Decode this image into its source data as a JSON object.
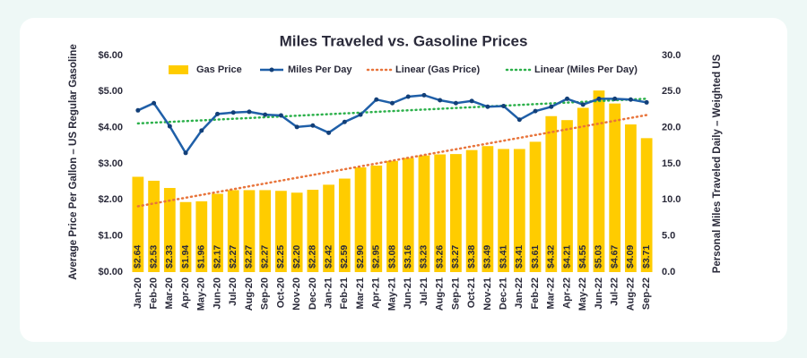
{
  "chart_data": {
    "type": "bar_line",
    "title": "Miles Traveled vs. Gasoline Prices",
    "y_label": "Average Price Per Gallon – US Regular Gasoline",
    "y2_label": "Personal Miles Traveled Daily – Weighted US",
    "categories": [
      "Jan-20",
      "Feb-20",
      "Mar-20",
      "Apr-20",
      "May-20",
      "Jun-20",
      "Jul-20",
      "Aug-20",
      "Sep-20",
      "Oct-20",
      "Nov-20",
      "Dec-20",
      "Jan-21",
      "Feb-21",
      "Mar-21",
      "Apr-21",
      "May-21",
      "Jun-21",
      "Jul-21",
      "Aug-21",
      "Sep-21",
      "Oct-21",
      "Nov-21",
      "Dec-21",
      "Jan-22",
      "Feb-22",
      "Mar-22",
      "Apr-22",
      "May-22",
      "Jun-22",
      "Jul-22",
      "Aug-22",
      "Sep-22"
    ],
    "series": [
      {
        "name": "Gas Price",
        "type": "bar",
        "color": "#ffcc00",
        "values": [
          2.64,
          2.53,
          2.33,
          1.94,
          1.96,
          2.17,
          2.27,
          2.27,
          2.27,
          2.25,
          2.2,
          2.28,
          2.42,
          2.59,
          2.9,
          2.95,
          3.08,
          3.16,
          3.23,
          3.26,
          3.27,
          3.38,
          3.49,
          3.41,
          3.41,
          3.61,
          4.32,
          4.21,
          4.55,
          5.03,
          4.67,
          4.09,
          3.71
        ],
        "value_labels": [
          "$2.64",
          "$2.53",
          "$2.33",
          "$1.94",
          "$1.96",
          "$2.17",
          "$2.27",
          "$2.27",
          "$2.27",
          "$2.25",
          "$2.20",
          "$2.28",
          "$2.42",
          "$2.59",
          "$2.90",
          "$2.95",
          "$3.08",
          "$3.16",
          "$3.23",
          "$3.26",
          "$3.27",
          "$3.38",
          "$3.49",
          "$3.41",
          "$3.41",
          "$3.61",
          "$4.32",
          "$4.21",
          "$4.55",
          "$5.03",
          "$4.67",
          "$4.09",
          "$3.71"
        ]
      },
      {
        "name": "Miles Per Day",
        "type": "line",
        "axis": "y2",
        "color": "#1f5fa8",
        "values": [
          22.4,
          23.4,
          20.2,
          16.5,
          19.6,
          21.9,
          22.1,
          22.2,
          21.8,
          21.7,
          20.1,
          20.3,
          19.3,
          20.8,
          21.8,
          23.9,
          23.4,
          24.3,
          24.5,
          23.8,
          23.4,
          23.7,
          22.9,
          23.0,
          21.1,
          22.3,
          22.9,
          24.0,
          23.2,
          24.0,
          24.0,
          23.9,
          23.5
        ]
      },
      {
        "name": "Linear (Gas Price)",
        "type": "trend",
        "trend_of": 0,
        "color": "#e8743b"
      },
      {
        "name": "Linear (Miles Per Day)",
        "type": "trend",
        "trend_of": 1,
        "axis": "y2",
        "color": "#2bb04a"
      }
    ],
    "ylim": [
      0,
      6
    ],
    "yticks": [
      {
        "value": 0,
        "label": "$0.00"
      },
      {
        "value": 1,
        "label": "$1.00"
      },
      {
        "value": 2,
        "label": "$2.00"
      },
      {
        "value": 3,
        "label": "$3.00"
      },
      {
        "value": 4,
        "label": "$4.00"
      },
      {
        "value": 5,
        "label": "$5.00"
      },
      {
        "value": 6,
        "label": "$6.00"
      }
    ],
    "y2lim": [
      0,
      30
    ],
    "y2ticks": [
      {
        "value": 0,
        "label": "0.0"
      },
      {
        "value": 5,
        "label": "5.0"
      },
      {
        "value": 10,
        "label": "10.0"
      },
      {
        "value": 15,
        "label": "15.0"
      },
      {
        "value": 20,
        "label": "20.0"
      },
      {
        "value": 25,
        "label": "25.0"
      },
      {
        "value": 30,
        "label": "30.0"
      }
    ]
  }
}
